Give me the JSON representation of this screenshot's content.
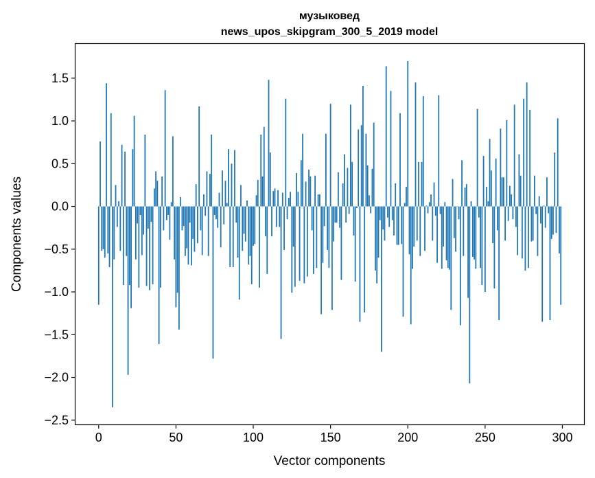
{
  "chart_data": {
    "type": "bar",
    "title_line1": "музыковед",
    "title_line2": "news_upos_skipgram_300_5_2019 model",
    "xlabel": "Vector components",
    "ylabel": "Components values",
    "xlim": [
      -15,
      314
    ],
    "ylim": [
      -2.55,
      1.9
    ],
    "xticks": [
      0,
      50,
      100,
      150,
      200,
      250,
      300
    ],
    "yticks": [
      1.5,
      1.0,
      0.5,
      0.0,
      -0.5,
      -1.0,
      -1.5,
      -2.0,
      -2.5
    ],
    "ytick_labels": [
      "1.5",
      "1.0",
      "0.5",
      "0.0",
      "−0.5",
      "−1.0",
      "−1.5",
      "−2.0",
      "−2.5"
    ],
    "bar_color": "#1f77b4",
    "grid": false,
    "values": [
      -1.15,
      0.76,
      -0.52,
      -0.5,
      -0.6,
      1.44,
      -0.55,
      -0.71,
      1.09,
      -2.35,
      -0.62,
      0.25,
      -0.24,
      0.06,
      -0.52,
      0.72,
      -0.92,
      0.64,
      -0.58,
      -1.97,
      -0.92,
      -1.19,
      0.67,
      1.06,
      -0.62,
      -0.2,
      -0.95,
      -0.1,
      -0.57,
      -0.33,
      0.84,
      -0.93,
      -0.26,
      -0.98,
      -0.18,
      -0.91,
      0.21,
      0.41,
      0.3,
      -1.61,
      -0.95,
      0.35,
      -0.28,
      1.36,
      -0.16,
      -0.1,
      -0.39,
      0.05,
      0.82,
      -0.62,
      -1.18,
      -1.01,
      -1.44,
      0.11,
      -0.28,
      -0.23,
      -0.58,
      -0.49,
      -0.68,
      -0.19,
      -0.69,
      -0.38,
      -0.53,
      0.26,
      -0.43,
      1.17,
      -0.28,
      -0.57,
      0.14,
      -0.11,
      0.41,
      -0.58,
      0.38,
      0.84,
      -1.78,
      -0.1,
      -0.15,
      -0.25,
      0.16,
      -0.48,
      0.42,
      -0.21,
      0.3,
      0.04,
      0.67,
      -0.71,
      0.5,
      -0.71,
      0.66,
      -0.19,
      -0.6,
      -1.09,
      0.25,
      -0.52,
      -0.32,
      -0.41,
      0.07,
      -0.68,
      -0.58,
      -0.91,
      -0.46,
      -0.44,
      0.13,
      0.31,
      -0.95,
      0.84,
      0.35,
      0.93,
      -0.35,
      -0.79,
      1.48,
      0.63,
      -0.35,
      0.18,
      0.21,
      -0.24,
      0.19,
      -0.24,
      -1.55,
      0.16,
      -0.51,
      1.26,
      -0.15,
      0.1,
      0.17,
      -1.01,
      -0.47,
      -0.94,
      0.39,
      0.17,
      -0.87,
      0.54,
      0.85,
      -0.9,
      0.29,
      -0.82,
      0.43,
      0.35,
      -0.28,
      -0.79,
      0.36,
      -0.72,
      0.14,
      0.14,
      -1.26,
      -0.66,
      -0.23,
      0.85,
      -0.51,
      -0.72,
      1.2,
      -1.21,
      -0.41,
      -0.19,
      -0.19,
      0.4,
      -0.25,
      -0.86,
      0.27,
      0.61,
      -0.19,
      0.45,
      -0.09,
      1.19,
      0.52,
      -0.34,
      -0.88,
      -0.02,
      0.9,
      -1.35,
      0.95,
      1.41,
      -1.24,
      0.85,
      0.48,
      0.13,
      -0.08,
      0.44,
      0.98,
      -0.75,
      -0.9,
      -0.6,
      -0.16,
      -1.7,
      -0.27,
      -0.4,
      1.64,
      -0.13,
      -0.24,
      1.35,
      -0.16,
      -0.34,
      0.27,
      -0.45,
      -0.45,
      1.09,
      -0.44,
      -1.29,
      0.04,
      0.23,
      1.7,
      -0.56,
      -1.38,
      -0.73,
      -0.47,
      1.45,
      -0.4,
      0.52,
      -0.58,
      0.52,
      1.29,
      -0.52,
      0.01,
      -0.08,
      0.05,
      0.14,
      -0.4,
      0.28,
      -0.11,
      -0.66,
      1.3,
      -0.09,
      -0.73,
      -0.47,
      0.05,
      -0.63,
      -0.72,
      -0.74,
      -1.21,
      0.32,
      -0.37,
      -0.53,
      0.0,
      -0.15,
      -1.39,
      0.54,
      -0.58,
      0.22,
      0.26,
      -1.07,
      -2.07,
      0.06,
      -0.59,
      -0.62,
      -0.73,
      1.14,
      -0.13,
      -0.72,
      -0.92,
      0.59,
      -1.0,
      0.23,
      0.06,
      0.79,
      0.42,
      -0.43,
      -0.96,
      0.56,
      -0.28,
      -1.33,
      0.91,
      0.34,
      0.34,
      -0.4,
      1.01,
      -0.17,
      0.24,
      0.14,
      -0.15,
      1.19,
      -0.24,
      -0.57,
      0.61,
      0.36,
      -0.61,
      1.26,
      -0.75,
      1.45,
      -0.72,
      1.13,
      -0.41,
      -0.4,
      0.36,
      -0.09,
      -0.58,
      0.12,
      -0.2,
      -1.35,
      0.01,
      -0.25,
      0.34,
      -0.08,
      -1.33,
      -0.38,
      -0.33,
      0.63,
      -0.31,
      1.03,
      -0.55,
      -1.15
    ]
  }
}
